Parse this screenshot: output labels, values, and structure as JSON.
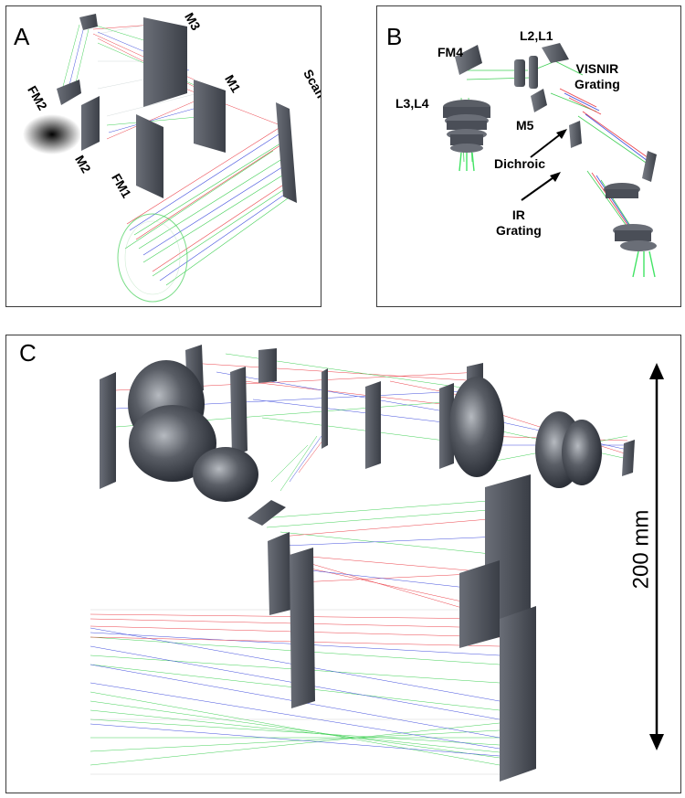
{
  "panels": {
    "a": {
      "label": "A",
      "components": {
        "m3": "M3",
        "m1": "M1",
        "fm2": "FM2",
        "m2": "M2",
        "fm1": "FM1",
        "scan_mirror": "Scan Mirror"
      }
    },
    "b": {
      "label": "B",
      "components": {
        "fm4": "FM4",
        "l2l1": "L2,L1",
        "visnir_1": "VISNIR",
        "visnir_2": "Grating",
        "l3l4": "L3,L4",
        "m5": "M5",
        "dichroic": "Dichroic",
        "ir_1": "IR",
        "ir_2": "Grating"
      }
    },
    "c": {
      "label": "C",
      "scale_bar": "200 mm"
    }
  },
  "colors": {
    "ray_red": "#e8202a",
    "ray_green": "#22c83a",
    "ray_blue": "#2030d8",
    "mirror_gray": "#4a4e57",
    "panel_border": "#3a3a3a"
  }
}
